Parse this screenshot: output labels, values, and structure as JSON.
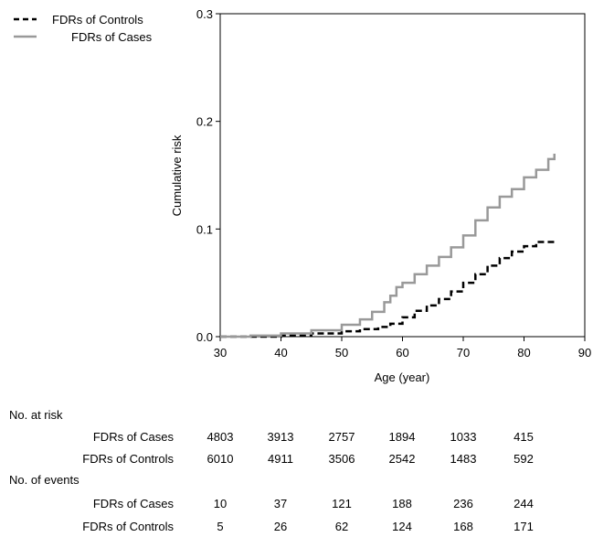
{
  "chart_data": {
    "type": "line",
    "xlabel": "Age (year)",
    "ylabel": "Cumulative risk",
    "xlim": [
      30,
      90
    ],
    "ylim": [
      0.0,
      0.3
    ],
    "x_ticks": [
      "30",
      "40",
      "50",
      "60",
      "70",
      "80",
      "90"
    ],
    "y_ticks": [
      "0.0",
      "0.1",
      "0.2",
      "0.3"
    ],
    "grid": false,
    "legend_position": "top-left",
    "series": [
      {
        "name": "FDRs of Controls",
        "style": "dashed",
        "color": "#000000",
        "x": [
          30,
          35,
          40,
          45,
          50,
          53,
          56,
          58,
          60,
          62,
          64,
          66,
          68,
          70,
          72,
          74,
          76,
          78,
          80,
          82,
          85
        ],
        "y": [
          0.0,
          0.0,
          0.001,
          0.003,
          0.005,
          0.007,
          0.009,
          0.012,
          0.018,
          0.024,
          0.029,
          0.035,
          0.042,
          0.05,
          0.058,
          0.066,
          0.073,
          0.079,
          0.084,
          0.088,
          0.089
        ]
      },
      {
        "name": "FDRs of Cases",
        "style": "solid",
        "color": "#999999",
        "x": [
          30,
          35,
          40,
          45,
          50,
          53,
          55,
          57,
          58,
          59,
          60,
          62,
          64,
          66,
          68,
          70,
          72,
          74,
          76,
          78,
          80,
          82,
          84,
          85
        ],
        "y": [
          0.0,
          0.001,
          0.003,
          0.006,
          0.011,
          0.016,
          0.023,
          0.032,
          0.038,
          0.046,
          0.05,
          0.058,
          0.066,
          0.074,
          0.083,
          0.094,
          0.108,
          0.12,
          0.13,
          0.137,
          0.148,
          0.155,
          0.165,
          0.17
        ]
      }
    ]
  },
  "risk_table": {
    "at_risk_header": "No. at risk",
    "events_header": "No. of events",
    "at_risk": [
      {
        "label": "FDRs of Cases",
        "values": [
          "4803",
          "3913",
          "2757",
          "1894",
          "1033",
          "415"
        ]
      },
      {
        "label": "FDRs of Controls",
        "values": [
          "6010",
          "4911",
          "3506",
          "2542",
          "1483",
          "592"
        ]
      }
    ],
    "events": [
      {
        "label": "FDRs of Cases",
        "values": [
          "10",
          "37",
          "121",
          "188",
          "236",
          "244"
        ]
      },
      {
        "label": "FDRs of Controls",
        "values": [
          "5",
          "26",
          "62",
          "124",
          "168",
          "171"
        ]
      }
    ]
  }
}
